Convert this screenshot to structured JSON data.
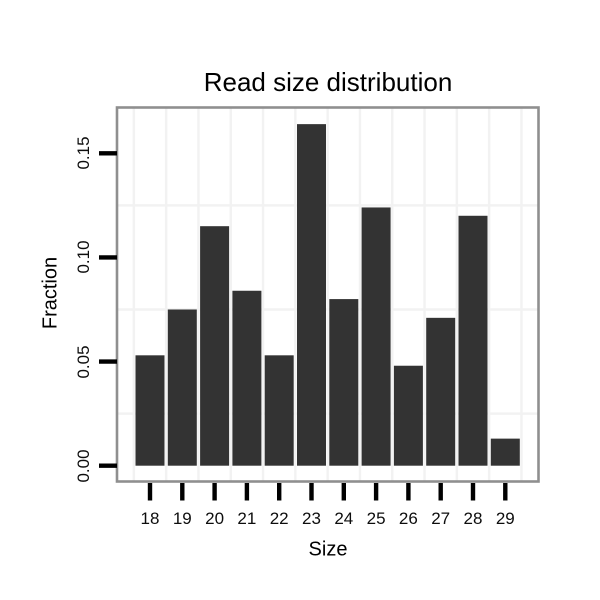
{
  "chart_data": {
    "type": "bar",
    "title": "Read size distribution",
    "xlabel": "Size",
    "ylabel": "Fraction",
    "categories": [
      "18",
      "19",
      "20",
      "21",
      "22",
      "23",
      "24",
      "25",
      "26",
      "27",
      "28",
      "29"
    ],
    "values": [
      0.053,
      0.075,
      0.115,
      0.084,
      0.053,
      0.164,
      0.08,
      0.124,
      0.048,
      0.071,
      0.12,
      0.013
    ],
    "yticks": [
      0,
      0.05,
      0.1,
      0.15
    ],
    "ytick_labels": [
      "0.00",
      "0.05",
      "0.10",
      "0.15"
    ],
    "y_minor_gridlines": [
      0.025,
      0.075,
      0.125
    ],
    "ylim": [
      0,
      0.172
    ],
    "grid": "faint minor gridlines only (between categories and at 0.025 steps)",
    "legend": "none",
    "colors": {
      "bar_fill": "#333333",
      "panel_background": "#ffffff",
      "panel_border": "#8f8f8f",
      "gridline": "#f2f2f2",
      "tick": "#000000",
      "text": "#000000"
    }
  }
}
